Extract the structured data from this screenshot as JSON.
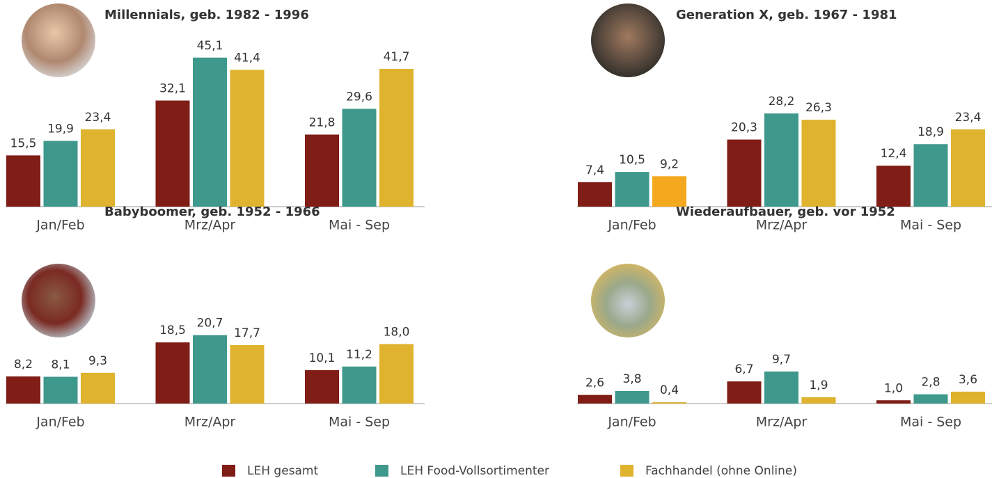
{
  "chart_data": [
    {
      "type": "bar",
      "title": "Millennials, geb. 1982 - 1996",
      "categories": [
        "Jan/Feb",
        "Mrz/Apr",
        "Mai - Sep"
      ],
      "series": [
        {
          "name": "LEH gesamt",
          "color": "#7f1d16",
          "values": [
            15.5,
            32.1,
            21.8
          ],
          "value_labels": [
            "15,5",
            "32,1",
            "21,8"
          ]
        },
        {
          "name": "LEH Food-Vollsortimenter",
          "color": "#3f988c",
          "values": [
            19.9,
            45.1,
            29.6
          ],
          "value_labels": [
            "19,9",
            "45,1",
            "29,6"
          ]
        },
        {
          "name": "Fachhandel (ohne Online)",
          "color": "#dfb32e",
          "values": [
            23.4,
            41.4,
            41.7
          ],
          "value_labels": [
            "23,4",
            "41,4",
            "41,7"
          ]
        }
      ]
    },
    {
      "type": "bar",
      "title": "Generation X, geb. 1967 - 1981",
      "categories": [
        "Jan/Feb",
        "Mrz/Apr",
        "Mai - Sep"
      ],
      "series": [
        {
          "color": "#7f1d16",
          "values": [
            7.4,
            20.3,
            12.4
          ],
          "value_labels": [
            "7,4",
            "20,3",
            "12,4"
          ]
        },
        {
          "color": "#3f988c",
          "values": [
            10.5,
            28.2,
            18.9
          ],
          "value_labels": [
            "10,5",
            "28,2",
            "18,9"
          ]
        },
        {
          "color": "#dfb32e",
          "colors": [
            "#f4a81d",
            "#dfb32e",
            "#dfb32e"
          ],
          "values": [
            9.2,
            26.3,
            23.4
          ],
          "value_labels": [
            "9,2",
            "26,3",
            "23,4"
          ]
        }
      ]
    },
    {
      "type": "bar",
      "title": "Babyboomer, geb. 1952 - 1966",
      "categories": [
        "Jan/Feb",
        "Mrz/Apr",
        "Mai - Sep"
      ],
      "series": [
        {
          "color": "#7f1d16",
          "values": [
            8.2,
            18.5,
            10.1
          ],
          "value_labels": [
            "8,2",
            "18,5",
            "10,1"
          ]
        },
        {
          "color": "#3f988c",
          "values": [
            8.1,
            20.7,
            11.2
          ],
          "value_labels": [
            "8,1",
            "20,7",
            "11,2"
          ]
        },
        {
          "color": "#dfb32e",
          "values": [
            9.3,
            17.7,
            18.0
          ],
          "value_labels": [
            "9,3",
            "17,7",
            "18,0"
          ]
        }
      ]
    },
    {
      "type": "bar",
      "title": "Wiederaufbauer, geb. vor 1952",
      "categories": [
        "Jan/Feb",
        "Mrz/Apr",
        "Mai - Sep"
      ],
      "series": [
        {
          "color": "#7f1d16",
          "values": [
            2.6,
            6.7,
            1.0
          ],
          "value_labels": [
            "2,6",
            "6,7",
            "1,0"
          ]
        },
        {
          "color": "#3f988c",
          "values": [
            3.8,
            9.7,
            2.8
          ],
          "value_labels": [
            "3,8",
            "9,7",
            "2,8"
          ]
        },
        {
          "color": "#dfb32e",
          "values": [
            0.4,
            1.9,
            3.6
          ],
          "value_labels": [
            "0,4",
            "1,9",
            "3,6"
          ]
        }
      ]
    }
  ]
}
